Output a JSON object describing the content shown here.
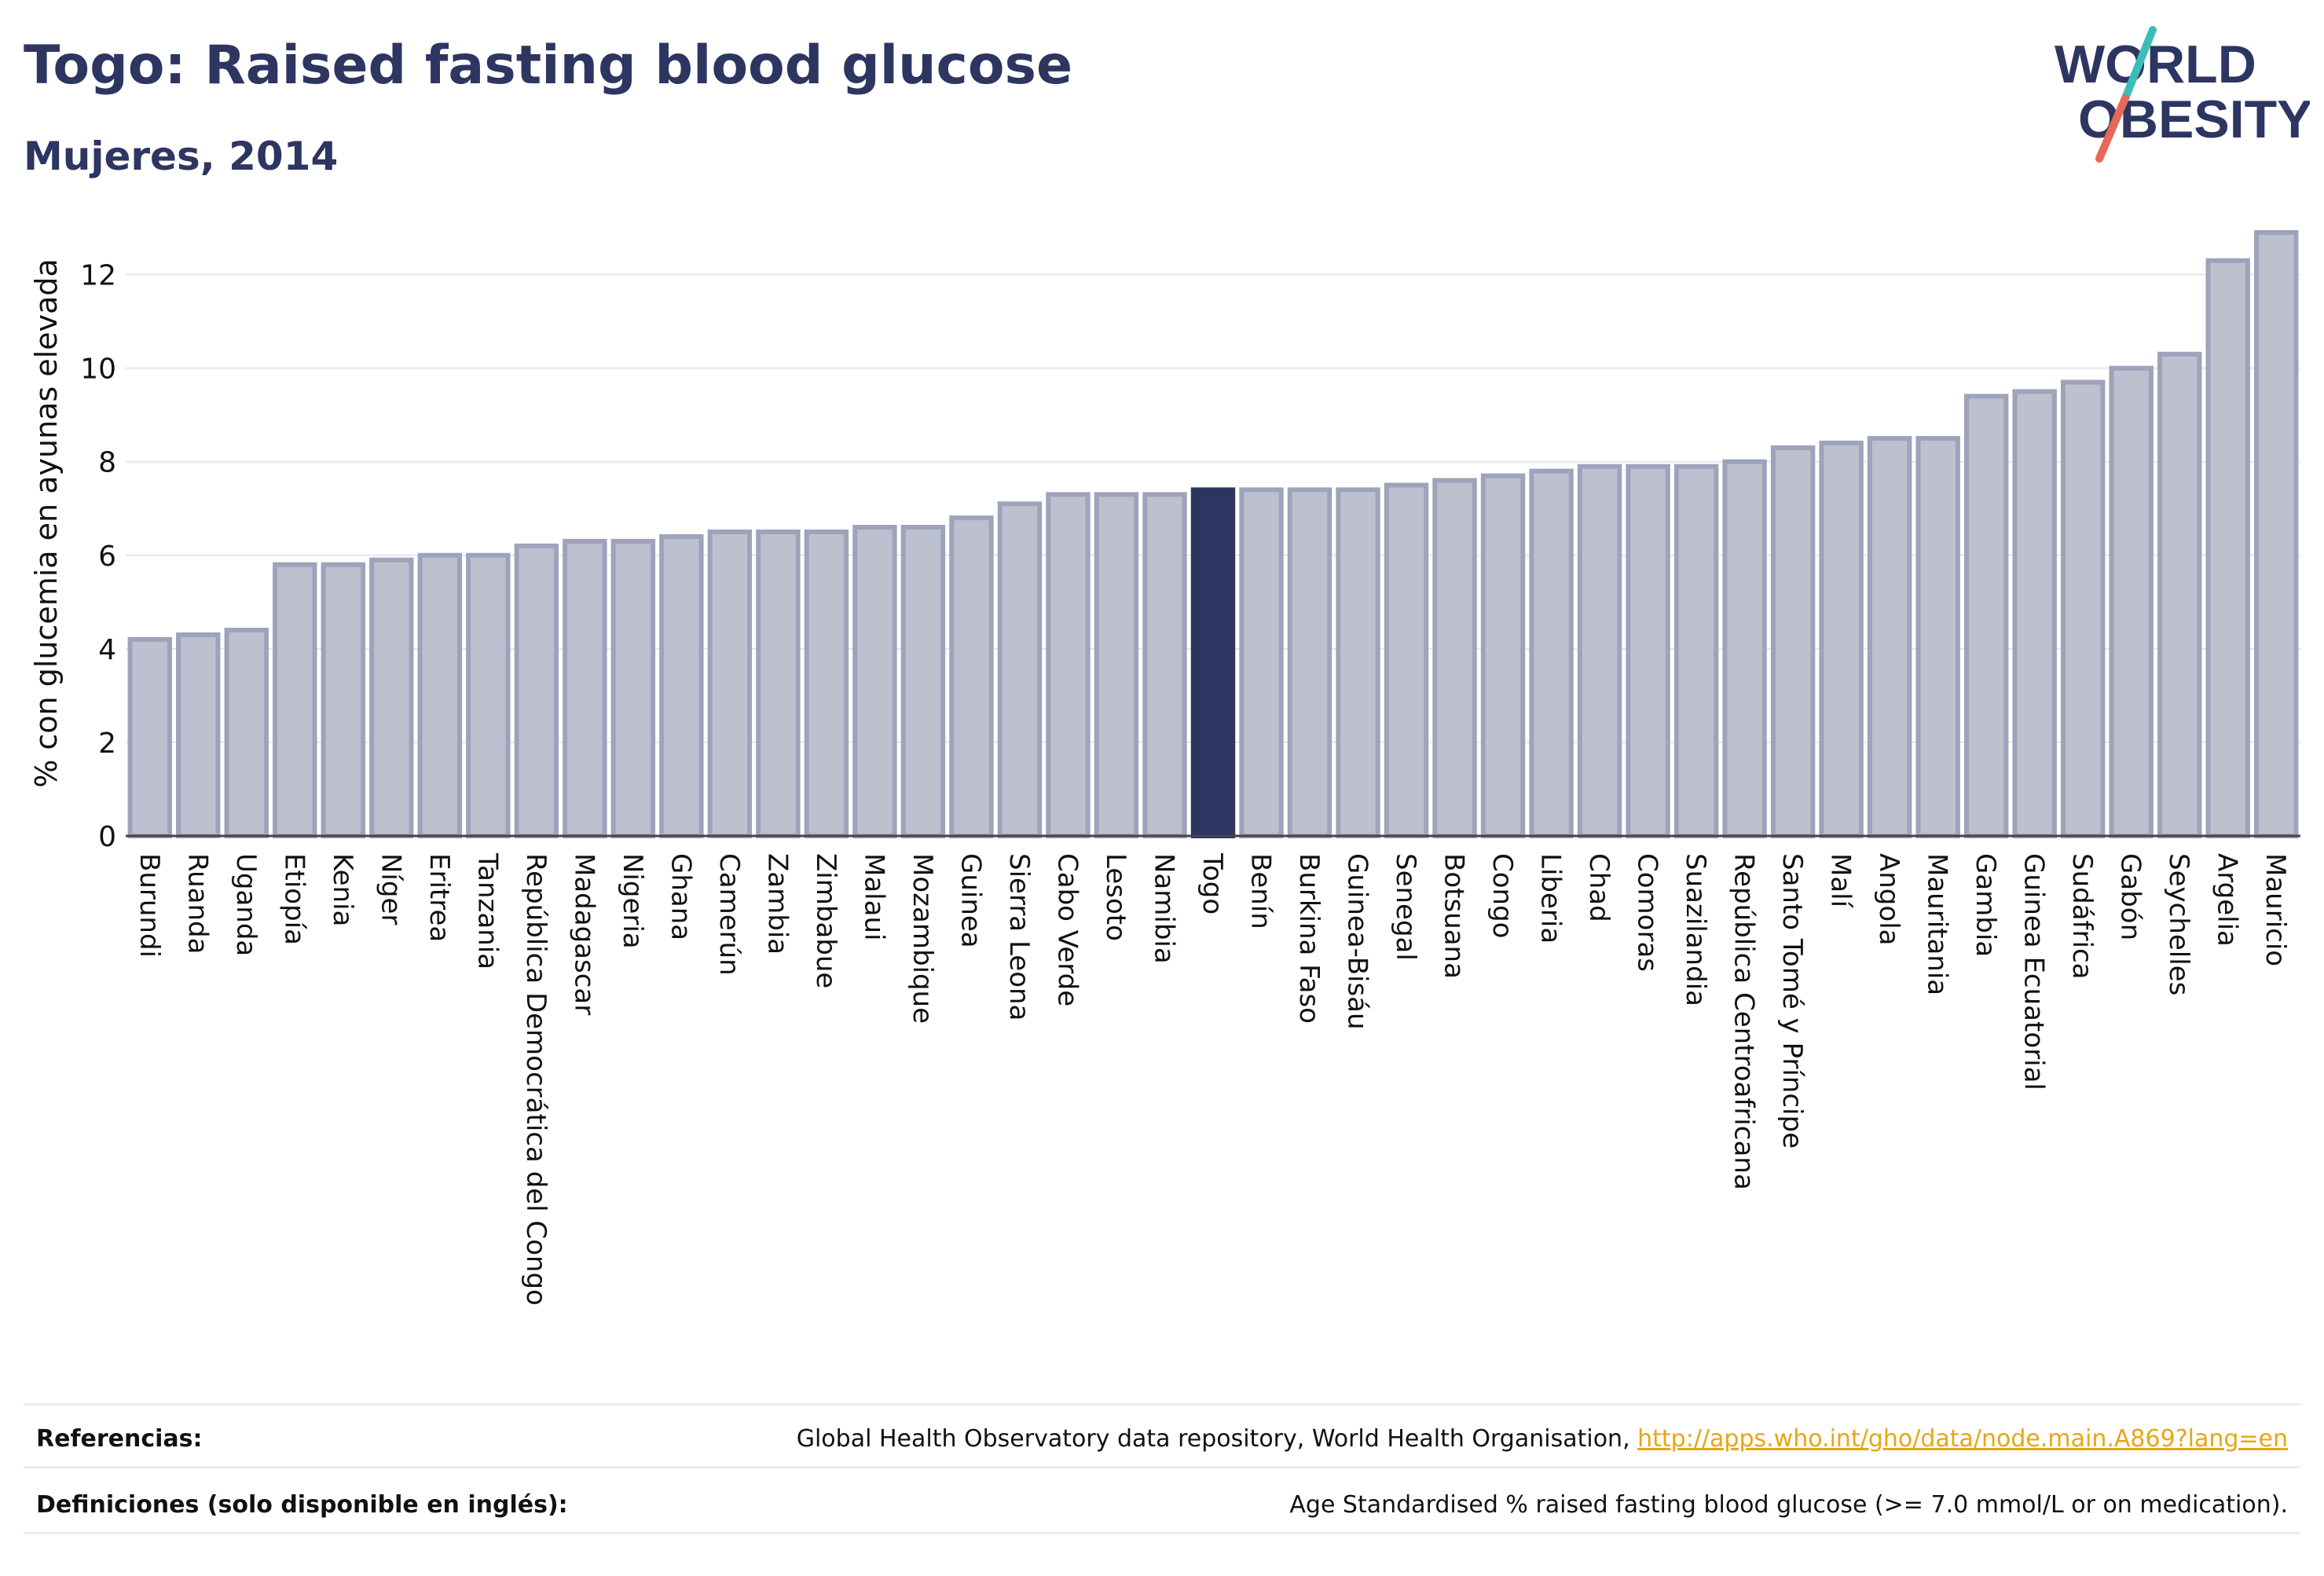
{
  "header": {
    "title": "Togo: Raised fasting blood glucose",
    "subtitle": "Mujeres, 2014"
  },
  "logo": {
    "line1": "WORLD",
    "line2": "OBESITY"
  },
  "colors": {
    "bar": "#bcc0cf",
    "bar_stroke": "#9ea3bb",
    "highlight": "#2d3561",
    "grid": "#e6e6ec",
    "text": "#111111",
    "brand": "#2d3561",
    "accent_teal": "#3dbdb8",
    "accent_red": "#e8685a"
  },
  "chart_data": {
    "type": "bar",
    "title": "",
    "xlabel": "",
    "ylabel": "% con glucemia en ayunas elevada",
    "ylim": [
      0,
      13
    ],
    "yticks": [
      0,
      2,
      4,
      6,
      8,
      10,
      12
    ],
    "grid": true,
    "highlight": "Togo",
    "categories": [
      "Burundi",
      "Ruanda",
      "Uganda",
      "Etiopía",
      "Kenia",
      "Níger",
      "Eritrea",
      "Tanzania",
      "República Democrática del Congo",
      "Madagascar",
      "Nigeria",
      "Ghana",
      "Camerún",
      "Zambia",
      "Zimbabue",
      "Malaui",
      "Mozambique",
      "Guinea",
      "Sierra Leona",
      "Cabo Verde",
      "Lesoto",
      "Namibia",
      "Togo",
      "Benín",
      "Burkina Faso",
      "Guinea-Bisáu",
      "Senegal",
      "Botsuana",
      "Congo",
      "Liberia",
      "Chad",
      "Comoras",
      "Suazilandia",
      "República Centroafricana",
      "Santo Tomé y Príncipe",
      "Malí",
      "Angola",
      "Mauritania",
      "Gambia",
      "Guinea Ecuatorial",
      "Sudáfrica",
      "Gabón",
      "Seychelles",
      "Argelia",
      "Mauricio"
    ],
    "values": [
      4.2,
      4.3,
      4.4,
      5.8,
      5.8,
      5.9,
      6.0,
      6.0,
      6.2,
      6.3,
      6.3,
      6.4,
      6.5,
      6.5,
      6.5,
      6.6,
      6.6,
      6.8,
      7.1,
      7.3,
      7.3,
      7.3,
      7.4,
      7.4,
      7.4,
      7.4,
      7.5,
      7.6,
      7.7,
      7.8,
      7.9,
      7.9,
      7.9,
      8.0,
      8.3,
      8.4,
      8.5,
      8.5,
      9.4,
      9.5,
      9.7,
      10.0,
      10.3,
      12.3,
      12.9
    ]
  },
  "footer": {
    "references_label": "Referencias:",
    "references_text": "Global Health Observatory data repository, World Health Organisation, ",
    "references_link": "http://apps.who.int/gho/data/node.main.A869?lang=en",
    "definitions_label": "Definiciones (solo disponible en inglés):",
    "definitions_text": "Age Standardised % raised fasting blood glucose (>= 7.0 mmol/L or on medication)."
  }
}
